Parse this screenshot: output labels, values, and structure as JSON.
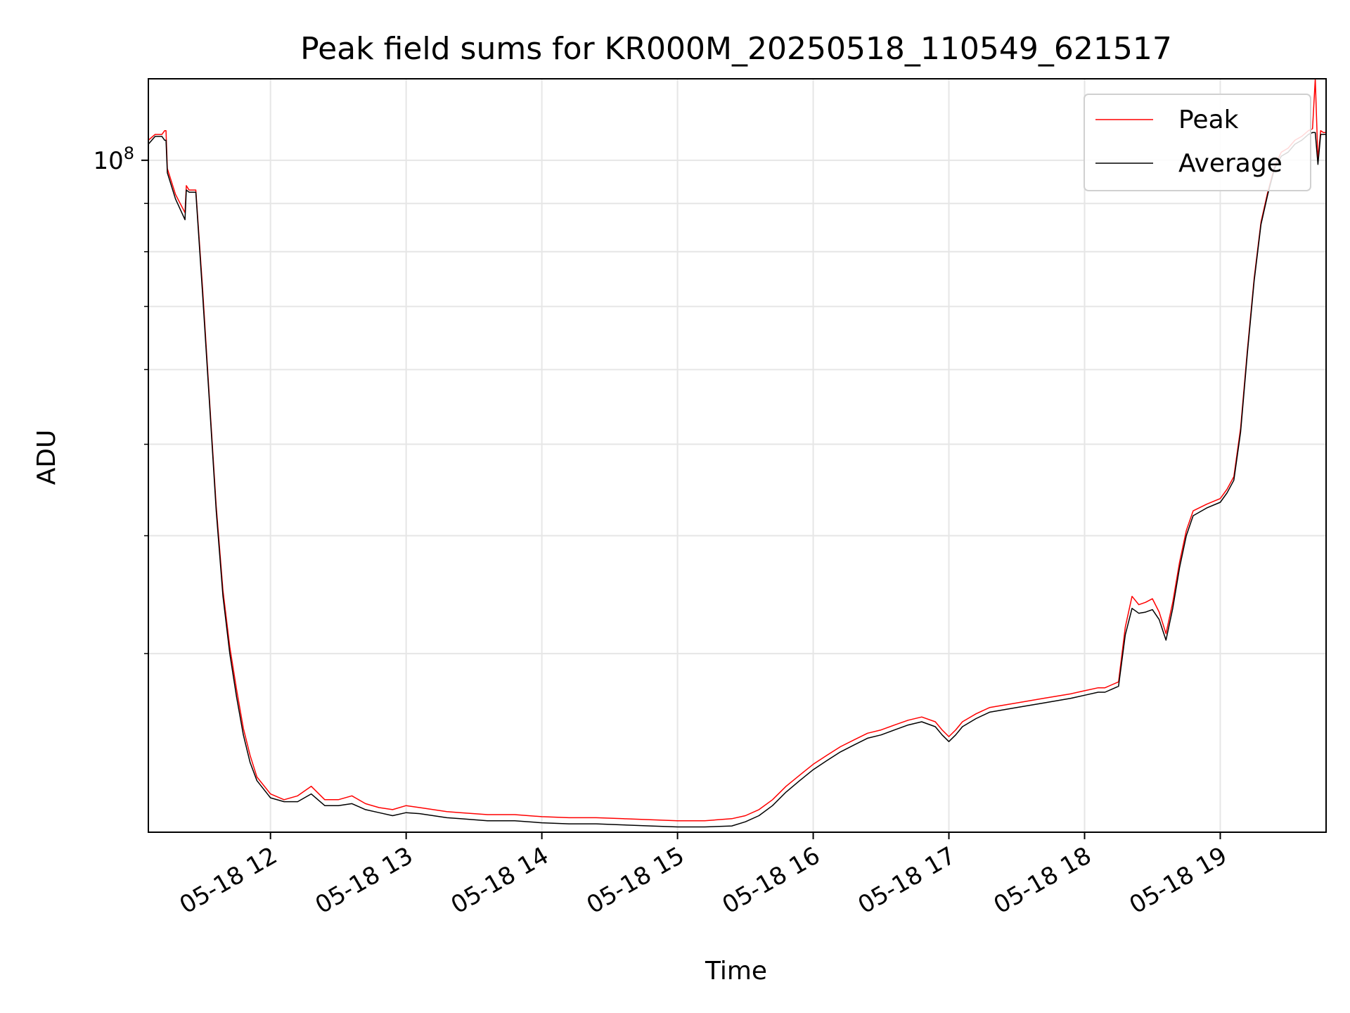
{
  "chart_data": {
    "type": "line",
    "title": "Peak field sums for KR000M_20250518_110549_621517",
    "xlabel": "Time",
    "ylabel": "ADU",
    "y_scale": "log",
    "y_tick_label": {
      "base": "10",
      "exponent": "8",
      "value": 100000000
    },
    "xlim": [
      11.1,
      19.78
    ],
    "ylim": [
      19400000,
      122000000
    ],
    "x_ticks": [
      {
        "value": 12,
        "label": "05-18 12"
      },
      {
        "value": 13,
        "label": "05-18 13"
      },
      {
        "value": 14,
        "label": "05-18 14"
      },
      {
        "value": 15,
        "label": "05-18 15"
      },
      {
        "value": 16,
        "label": "05-18 16"
      },
      {
        "value": 17,
        "label": "05-18 17"
      },
      {
        "value": 18,
        "label": "05-18 18"
      },
      {
        "value": 19,
        "label": "05-18 19"
      }
    ],
    "y_grid_values": [
      30000000,
      40000000,
      50000000,
      60000000,
      70000000,
      80000000,
      90000000,
      100000000
    ],
    "grid": true,
    "legend_position": "top-right",
    "series": [
      {
        "name": "Peak",
        "color": "#ff0000",
        "x": [
          11.1,
          11.15,
          11.2,
          11.22,
          11.23,
          11.24,
          11.3,
          11.37,
          11.38,
          11.4,
          11.45,
          11.5,
          11.55,
          11.6,
          11.65,
          11.7,
          11.75,
          11.8,
          11.85,
          11.9,
          12.0,
          12.1,
          12.2,
          12.3,
          12.4,
          12.5,
          12.6,
          12.7,
          12.8,
          12.9,
          13.0,
          13.1,
          13.2,
          13.3,
          13.4,
          13.5,
          13.6,
          13.8,
          14.0,
          14.2,
          14.4,
          14.6,
          14.8,
          15.0,
          15.2,
          15.4,
          15.5,
          15.6,
          15.7,
          15.8,
          15.9,
          16.0,
          16.1,
          16.2,
          16.3,
          16.4,
          16.5,
          16.6,
          16.7,
          16.8,
          16.9,
          16.95,
          17.0,
          17.05,
          17.1,
          17.2,
          17.3,
          17.5,
          17.7,
          17.9,
          18.0,
          18.1,
          18.15,
          18.2,
          18.25,
          18.3,
          18.35,
          18.4,
          18.45,
          18.5,
          18.55,
          18.6,
          18.65,
          18.7,
          18.75,
          18.8,
          18.9,
          19.0,
          19.05,
          19.1,
          19.15,
          19.2,
          19.25,
          19.3,
          19.35,
          19.4,
          19.45,
          19.5,
          19.55,
          19.6,
          19.65,
          19.68,
          19.7,
          19.72,
          19.74,
          19.76,
          19.78
        ],
        "values": [
          105000000,
          106500000,
          106500000,
          107500000,
          107500000,
          98000000,
          92000000,
          88000000,
          94000000,
          93000000,
          93000000,
          73000000,
          56000000,
          43000000,
          35000000,
          30500000,
          27500000,
          25000000,
          23400000,
          22200000,
          21300000,
          21000000,
          21200000,
          21700000,
          21000000,
          21000000,
          21200000,
          20800000,
          20600000,
          20500000,
          20700000,
          20600000,
          20500000,
          20400000,
          20350000,
          20300000,
          20250000,
          20250000,
          20150000,
          20100000,
          20100000,
          20050000,
          20000000,
          19950000,
          19950000,
          20050000,
          20200000,
          20500000,
          21000000,
          21700000,
          22300000,
          22900000,
          23400000,
          23900000,
          24300000,
          24700000,
          24900000,
          25200000,
          25500000,
          25700000,
          25400000,
          24900000,
          24500000,
          24900000,
          25400000,
          25900000,
          26300000,
          26600000,
          26900000,
          27200000,
          27400000,
          27600000,
          27600000,
          27800000,
          28000000,
          32000000,
          34500000,
          33800000,
          34000000,
          34300000,
          33200000,
          31500000,
          34000000,
          37500000,
          40500000,
          42500000,
          43200000,
          43800000,
          44800000,
          46200000,
          52000000,
          63000000,
          75000000,
          86000000,
          92500000,
          98500000,
          102000000,
          103000000,
          105000000,
          106000000,
          107500000,
          108000000,
          122000000,
          100000000,
          107500000,
          107000000,
          107000000
        ]
      },
      {
        "name": "Average",
        "color": "#000000",
        "x": [
          11.1,
          11.15,
          11.2,
          11.22,
          11.23,
          11.24,
          11.3,
          11.37,
          11.38,
          11.4,
          11.45,
          11.5,
          11.55,
          11.6,
          11.65,
          11.7,
          11.75,
          11.8,
          11.85,
          11.9,
          12.0,
          12.1,
          12.2,
          12.3,
          12.4,
          12.5,
          12.6,
          12.7,
          12.8,
          12.9,
          13.0,
          13.1,
          13.2,
          13.3,
          13.4,
          13.5,
          13.6,
          13.8,
          14.0,
          14.2,
          14.4,
          14.6,
          14.8,
          15.0,
          15.2,
          15.4,
          15.5,
          15.6,
          15.7,
          15.8,
          15.9,
          16.0,
          16.1,
          16.2,
          16.3,
          16.4,
          16.5,
          16.6,
          16.7,
          16.8,
          16.9,
          16.95,
          17.0,
          17.05,
          17.1,
          17.2,
          17.3,
          17.5,
          17.7,
          17.9,
          18.0,
          18.1,
          18.15,
          18.2,
          18.25,
          18.3,
          18.35,
          18.4,
          18.45,
          18.5,
          18.55,
          18.6,
          18.65,
          18.7,
          18.75,
          18.8,
          18.9,
          19.0,
          19.05,
          19.1,
          19.15,
          19.2,
          19.25,
          19.3,
          19.35,
          19.4,
          19.45,
          19.5,
          19.55,
          19.6,
          19.65,
          19.68,
          19.7,
          19.72,
          19.74,
          19.76,
          19.78
        ],
        "values": [
          104000000,
          106000000,
          106000000,
          105000000,
          105000000,
          97000000,
          91000000,
          86500000,
          93000000,
          92500000,
          92500000,
          72000000,
          55500000,
          42500000,
          34500000,
          30000000,
          27000000,
          24600000,
          23000000,
          22000000,
          21100000,
          20900000,
          20900000,
          21300000,
          20700000,
          20700000,
          20800000,
          20500000,
          20350000,
          20200000,
          20350000,
          20300000,
          20200000,
          20100000,
          20050000,
          20000000,
          19950000,
          19950000,
          19850000,
          19800000,
          19800000,
          19750000,
          19700000,
          19650000,
          19650000,
          19700000,
          19900000,
          20200000,
          20700000,
          21400000,
          22000000,
          22600000,
          23100000,
          23600000,
          24000000,
          24400000,
          24600000,
          24900000,
          25200000,
          25400000,
          25100000,
          24600000,
          24200000,
          24600000,
          25100000,
          25600000,
          26000000,
          26300000,
          26600000,
          26900000,
          27100000,
          27300000,
          27300000,
          27500000,
          27700000,
          31400000,
          33500000,
          33100000,
          33200000,
          33400000,
          32600000,
          31000000,
          33500000,
          37000000,
          40000000,
          42000000,
          42800000,
          43400000,
          44400000,
          45800000,
          51500000,
          62500000,
          74500000,
          85500000,
          92000000,
          98000000,
          101000000,
          102000000,
          104000000,
          105000000,
          106500000,
          107000000,
          107000000,
          99000000,
          106500000,
          106500000,
          106500000
        ]
      }
    ]
  }
}
